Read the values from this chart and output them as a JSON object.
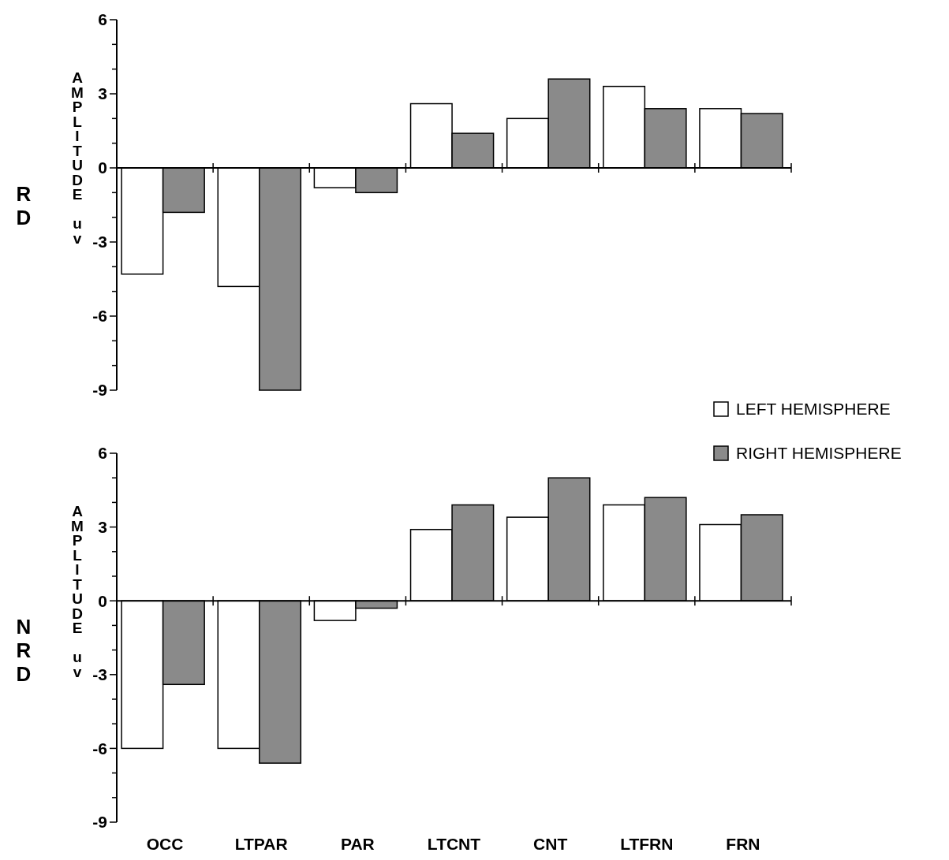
{
  "chart_data": [
    {
      "type": "bar",
      "title": "RD",
      "ylabel": "AMPLITUDE uv",
      "categories": [
        null,
        null,
        null,
        null,
        null,
        null,
        null
      ],
      "series": [
        {
          "name": "LEFT HEMISPHERE",
          "color": "#ffffff",
          "values": [
            -4.3,
            -4.8,
            -0.8,
            2.6,
            2.0,
            3.3,
            2.4
          ]
        },
        {
          "name": "RIGHT HEMISPHERE",
          "color": "#8a8a8a",
          "values": [
            -1.8,
            -9.0,
            -1.0,
            1.4,
            3.6,
            2.4,
            2.2
          ]
        }
      ],
      "ylim": [
        -9,
        6
      ],
      "yticks": [
        -9,
        {
          "value": -8,
          "label": null
        },
        {
          "value": -7,
          "label": null
        },
        -6,
        {
          "value": -5,
          "label": null
        },
        {
          "value": -4,
          "label": null
        },
        -3,
        {
          "value": -2,
          "label": null
        },
        {
          "value": -1,
          "label": null
        },
        0,
        {
          "value": 1,
          "label": null
        },
        {
          "value": 2,
          "label": null
        },
        3,
        {
          "value": 4,
          "label": null
        },
        {
          "value": 5,
          "label": null
        },
        6
      ],
      "tick_labels": "y",
      "legend": "bottom right"
    },
    {
      "type": "bar",
      "title": "NRD",
      "ylabel": "AMPLITUDE uv",
      "categories": [
        "OCC",
        "LTPAR",
        "PAR",
        "LTCNT",
        "CNT",
        "LTFRN",
        "FRN"
      ],
      "series": [
        {
          "color": "#ffffff",
          "values": [
            -6.0,
            -6.0,
            -0.8,
            2.9,
            3.4,
            3.9,
            3.1
          ]
        },
        {
          "color": "#8a8a8a",
          "values": [
            -3.4,
            -6.6,
            -0.3,
            3.9,
            5.0,
            4.2,
            3.5
          ]
        }
      ],
      "ylim": [
        -9,
        6
      ],
      "yticks": [
        -9,
        {
          "value": -8,
          "label": null
        },
        {
          "value": -7,
          "label": null
        },
        -6,
        {
          "value": -5,
          "label": null
        },
        {
          "value": -4,
          "label": null
        },
        -3,
        {
          "value": -2,
          "label": null
        },
        {
          "value": -1,
          "label": null
        },
        0,
        {
          "value": 1,
          "label": null
        },
        {
          "value": 2,
          "label": null
        },
        3,
        {
          "value": 4,
          "label": null
        },
        {
          "value": 5,
          "label": null
        },
        6
      ]
    }
  ]
}
